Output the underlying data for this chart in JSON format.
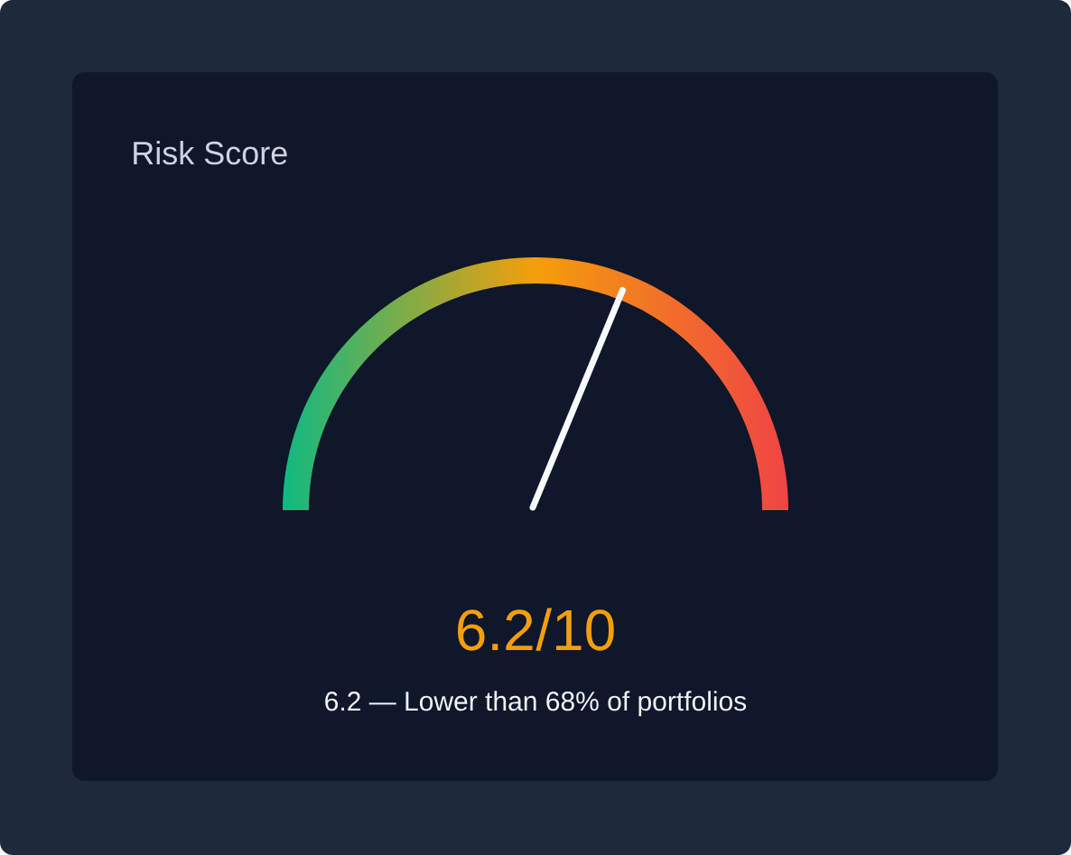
{
  "chart_data": {
    "type": "other",
    "title": "Risk Score",
    "values": [
      6.2,
      10
    ],
    "value_labels": [
      "6.2",
      "/10"
    ],
    "color": "#f8fafc",
    "annotations": [
      "6.2 — Lower than 68% of portfolios"
    ]
  }
}
